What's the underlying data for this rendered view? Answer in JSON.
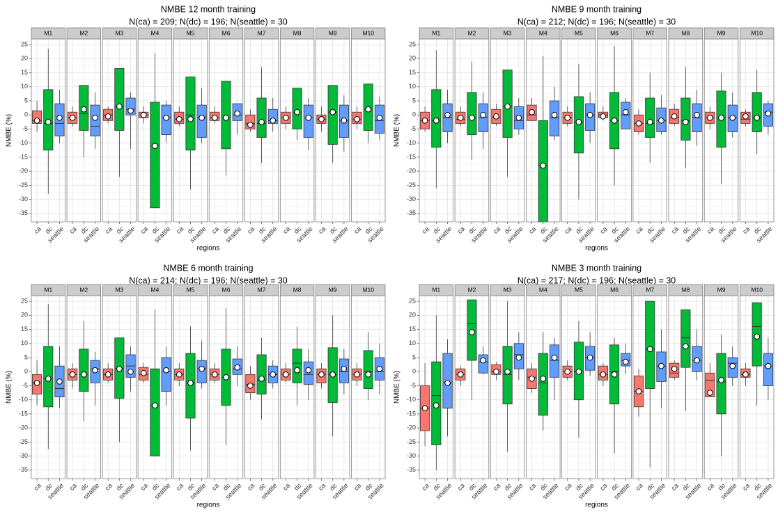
{
  "chart_data": [
    {
      "type": "boxplot",
      "title": "NMBE 12 month training",
      "subtitle": "N(ca) = 209; N(dc) = 196; N(seattle) = 30",
      "xlabel": "regions",
      "ylabel": "NMBE (%)",
      "ylim": [
        -38,
        27
      ],
      "yticks": [
        25,
        20,
        15,
        10,
        5,
        0,
        -5,
        -10,
        -15,
        -20,
        -25,
        -30,
        -35
      ],
      "panels": [
        "M1",
        "M2",
        "M3",
        "M4",
        "M5",
        "M6",
        "M7",
        "M8",
        "M9",
        "M10"
      ],
      "categories": [
        "ca",
        "dc",
        "seattle"
      ],
      "colors": {
        "ca": "#f8766d",
        "dc": "#00ba38",
        "seattle": "#619cff"
      },
      "grid": true,
      "data": [
        [
          [
            -6,
            -3,
            -2,
            1.5,
            5,
            -2
          ],
          [
            -28,
            -12.5,
            -3,
            9,
            23.5,
            -2.5
          ],
          [
            -10,
            -7.5,
            -3,
            4,
            9,
            -1
          ]
        ],
        [
          [
            -4,
            -3,
            -1,
            1,
            3,
            -1
          ],
          [
            -15,
            -5.5,
            0.5,
            10.5,
            10.5,
            2
          ],
          [
            -12,
            -7.5,
            -4,
            3.5,
            8,
            -1
          ]
        ],
        [
          [
            -3,
            -2,
            0,
            2,
            3,
            -0.5
          ],
          [
            -22,
            -5.5,
            3,
            16.5,
            16.5,
            3
          ],
          [
            -12,
            0,
            2,
            6,
            8,
            1.5
          ]
        ],
        [
          [
            -3,
            -1,
            0,
            1,
            3,
            0
          ],
          [
            -33,
            -33,
            -11,
            4.5,
            22,
            -11
          ],
          [
            -10,
            -7,
            -1,
            3.5,
            5,
            -1
          ]
        ],
        [
          [
            -4,
            -3,
            -1.5,
            1,
            3,
            -1.5
          ],
          [
            -26.5,
            -12.5,
            0,
            13.5,
            13.5,
            -1.5
          ],
          [
            -10,
            -8,
            -1,
            3.5,
            9.5,
            -1
          ]
        ],
        [
          [
            -3,
            -2,
            -1,
            1,
            3,
            -1
          ],
          [
            -21.5,
            -12,
            -1,
            12,
            12,
            -1
          ],
          [
            -7,
            -2,
            0,
            4,
            4,
            0.5
          ]
        ],
        [
          [
            -6,
            -5,
            -3,
            0,
            2,
            -3.5
          ],
          [
            -17,
            -8,
            -3,
            6,
            17,
            -2.5
          ],
          [
            -6,
            -3,
            -2,
            2,
            6,
            -2
          ]
        ],
        [
          [
            -5,
            -3,
            -1,
            1,
            3,
            -1
          ],
          [
            -9,
            -5,
            1,
            9.5,
            9.5,
            1
          ],
          [
            -12.5,
            -8,
            -1,
            3.5,
            6,
            -1
          ]
        ],
        [
          [
            -6,
            -3,
            -1.5,
            0,
            3,
            -1.5
          ],
          [
            -17,
            -10.5,
            1,
            10.5,
            10.5,
            1
          ],
          [
            -13,
            -8,
            -2,
            3.5,
            7,
            -2
          ]
        ],
        [
          [
            -5,
            -3,
            -1.5,
            1,
            3,
            -1.5
          ],
          [
            -10,
            -5.5,
            2,
            11,
            11,
            2
          ],
          [
            -9,
            -6.5,
            -2,
            3.5,
            6.5,
            -1
          ]
        ]
      ]
    },
    {
      "type": "boxplot",
      "title": "NMBE 9 month training",
      "subtitle": "N(ca) = 212; N(dc) = 196; N(seattle) = 30",
      "xlabel": "regions",
      "ylabel": "NMBE (%)",
      "ylim": [
        -38,
        27
      ],
      "yticks": [
        25,
        20,
        15,
        10,
        5,
        0,
        -5,
        -10,
        -15,
        -20,
        -25,
        -30,
        -35
      ],
      "panels": [
        "M1",
        "M2",
        "M3",
        "M4",
        "M5",
        "M6",
        "M7",
        "M8",
        "M9",
        "M10"
      ],
      "categories": [
        "ca",
        "dc",
        "seattle"
      ],
      "colors": {
        "ca": "#f8766d",
        "dc": "#00ba38",
        "seattle": "#619cff"
      },
      "grid": true,
      "data": [
        [
          [
            -6,
            -5,
            -2,
            1,
            3,
            -2
          ],
          [
            -26,
            -11.5,
            -2,
            9,
            23,
            -2
          ],
          [
            -10,
            -6,
            -1,
            4,
            9,
            0
          ]
        ],
        [
          [
            -4,
            -3,
            -1.5,
            1,
            3,
            -1
          ],
          [
            -16,
            -7,
            -1,
            8,
            19,
            -1
          ],
          [
            -12,
            -6,
            -1,
            4,
            8,
            0
          ]
        ],
        [
          [
            -4,
            -3,
            -1,
            2,
            4,
            -0.5
          ],
          [
            -22,
            -8,
            3,
            16,
            16,
            3
          ],
          [
            -7,
            -5,
            -2,
            3,
            6,
            -1
          ]
        ],
        [
          [
            -1,
            -2,
            0,
            3.5,
            6,
            1
          ],
          [
            -38,
            -38,
            -18,
            -2,
            21,
            -18
          ],
          [
            -9,
            -7.5,
            -1,
            5,
            10,
            0
          ]
        ],
        [
          [
            -4,
            -3,
            -1,
            1,
            3,
            -1
          ],
          [
            -30,
            -13.5,
            -2.5,
            6.5,
            18,
            -2.5
          ],
          [
            -10,
            -5.5,
            0,
            4,
            8,
            0
          ]
        ],
        [
          [
            -2,
            -1,
            0,
            1,
            3,
            -0.5
          ],
          [
            -25,
            -12,
            -2,
            8,
            24.5,
            -2
          ],
          [
            -4,
            -5,
            0,
            4.5,
            6,
            1
          ]
        ],
        [
          [
            -7,
            -6,
            -3,
            0,
            2,
            -3
          ],
          [
            -17,
            -8,
            -3,
            6,
            15,
            -2.5
          ],
          [
            -7,
            -6,
            -2,
            2.5,
            7,
            -2
          ]
        ],
        [
          [
            -4,
            -3,
            -1,
            2,
            4,
            -0.5
          ],
          [
            -19,
            -9,
            -2,
            6,
            17,
            -2.5
          ],
          [
            -11,
            -6,
            -1,
            4,
            9,
            0
          ]
        ],
        [
          [
            -5,
            -3,
            -1,
            1,
            3,
            -1
          ],
          [
            -24.5,
            -11.5,
            -1,
            8.5,
            15,
            -1
          ],
          [
            -8,
            -6,
            -1,
            3.5,
            8,
            -1
          ]
        ],
        [
          [
            -4,
            -3,
            -1.5,
            1,
            2,
            -0.5
          ],
          [
            -14,
            -6,
            -1,
            8,
            16,
            -1
          ],
          [
            -7,
            -4,
            1,
            4,
            5,
            0.5
          ]
        ]
      ]
    },
    {
      "type": "boxplot",
      "title": "NMBE 6 month training",
      "subtitle": "N(ca) = 214; N(dc) = 196; N(seattle) = 30",
      "xlabel": "regions",
      "ylabel": "NMBE (%)",
      "ylim": [
        -38,
        27
      ],
      "yticks": [
        25,
        20,
        15,
        10,
        5,
        0,
        -5,
        -10,
        -15,
        -20,
        -25,
        -30,
        -35
      ],
      "panels": [
        "M1",
        "M2",
        "M3",
        "M4",
        "M5",
        "M6",
        "M7",
        "M8",
        "M9",
        "M10"
      ],
      "categories": [
        "ca",
        "dc",
        "seattle"
      ],
      "colors": {
        "ca": "#f8766d",
        "dc": "#00ba38",
        "seattle": "#619cff"
      },
      "grid": true,
      "data": [
        [
          [
            -12,
            -8,
            -4,
            -1,
            4,
            -4
          ],
          [
            -27.5,
            -12.5,
            -2.5,
            9,
            24,
            -2.5
          ],
          [
            -13,
            -9,
            -6,
            2,
            9,
            -3.5
          ]
        ],
        [
          [
            -6,
            -3,
            -1,
            1,
            3,
            -1
          ],
          [
            -17.5,
            -7,
            -1,
            8,
            18,
            -1
          ],
          [
            -12,
            -4,
            1,
            4,
            7,
            0.5
          ]
        ],
        [
          [
            -4,
            -3,
            -1,
            1,
            3,
            -1
          ],
          [
            -25,
            -9.5,
            1,
            12,
            12,
            1
          ],
          [
            -7,
            -2,
            2,
            6,
            9,
            0
          ]
        ],
        [
          [
            -4,
            -3,
            -1,
            1.5,
            3,
            -0.5
          ],
          [
            -30,
            -30,
            -12,
            1,
            22,
            -12
          ],
          [
            -12,
            -7,
            0,
            5,
            9,
            0.5
          ]
        ],
        [
          [
            -5,
            -3,
            -1,
            1,
            3,
            -1
          ],
          [
            -28,
            -16.5,
            -4,
            6.5,
            16,
            -4
          ],
          [
            -6,
            -4,
            1,
            4,
            11,
            1
          ]
        ],
        [
          [
            -4,
            -3,
            -1,
            1,
            3,
            -1
          ],
          [
            -26,
            -12,
            -2,
            8,
            22.5,
            -2
          ],
          [
            -5,
            -1,
            1,
            4.5,
            9,
            1.5
          ]
        ],
        [
          [
            -10,
            -7.5,
            -4.5,
            -1,
            2,
            -5
          ],
          [
            -17,
            -8,
            -3,
            6,
            12,
            -2.5
          ],
          [
            -6,
            -4,
            -1,
            2,
            4,
            -1
          ]
        ],
        [
          [
            -4,
            -3,
            -1,
            1,
            3,
            -1
          ],
          [
            -12,
            -4,
            3,
            8,
            16,
            0.5
          ],
          [
            -10,
            -4.5,
            -1,
            3.5,
            8,
            0.5
          ]
        ],
        [
          [
            -6,
            -4,
            -1,
            1,
            3,
            -1
          ],
          [
            -23,
            -11,
            -1,
            8.5,
            20,
            -1
          ],
          [
            -8,
            -4,
            0,
            4.5,
            8,
            1
          ]
        ],
        [
          [
            -5,
            -3,
            -1,
            1,
            3,
            -1
          ],
          [
            -10,
            -6,
            0,
            7.5,
            14,
            -1
          ],
          [
            -8,
            -3,
            0,
            5,
            10,
            1
          ]
        ]
      ]
    },
    {
      "type": "boxplot",
      "title": "NMBE 3 month training",
      "subtitle": "N(ca) = 217; N(dc) = 196; N(seattle) = 30",
      "xlabel": "regions",
      "ylabel": "NMBE (%)",
      "ylim": [
        -38,
        27
      ],
      "yticks": [
        25,
        20,
        15,
        10,
        5,
        0,
        -5,
        -10,
        -15,
        -20,
        -25,
        -30,
        -35
      ],
      "panels": [
        "M1",
        "M2",
        "M3",
        "M4",
        "M5",
        "M6",
        "M7",
        "M8",
        "M9",
        "M10"
      ],
      "categories": [
        "ca",
        "dc",
        "seattle"
      ],
      "colors": {
        "ca": "#f8766d",
        "dc": "#00ba38",
        "seattle": "#619cff"
      },
      "grid": true,
      "data": [
        [
          [
            -26.5,
            -21,
            -13,
            -5,
            3,
            -13
          ],
          [
            -35,
            -26,
            -8.5,
            3.5,
            20,
            -12
          ],
          [
            -23,
            -13,
            -4,
            6.5,
            11.5,
            -4
          ]
        ],
        [
          [
            -5,
            -3,
            -1,
            1,
            2,
            -1
          ],
          [
            -10,
            4,
            17,
            25.5,
            25.5,
            14
          ],
          [
            -1,
            -0.5,
            3.5,
            6,
            9,
            4
          ]
        ],
        [
          [
            -3,
            -1,
            0,
            2.5,
            3.5,
            0
          ],
          [
            -28.5,
            -11.5,
            -1,
            9,
            25,
            0
          ],
          [
            -3,
            1,
            6,
            10,
            14,
            5
          ]
        ],
        [
          [
            -7.5,
            -6,
            -2,
            1,
            3,
            -2.5
          ],
          [
            -21,
            -15.5,
            -4,
            6.5,
            14,
            -2.5
          ],
          [
            -10,
            -2,
            4,
            9.5,
            12,
            5
          ]
        ],
        [
          [
            -3,
            -2,
            0,
            2,
            4,
            0
          ],
          [
            -23.5,
            -10,
            0,
            10.5,
            18,
            0
          ],
          [
            -1.5,
            0.5,
            5,
            9,
            14,
            5
          ]
        ],
        [
          [
            -5,
            -3,
            -1,
            2,
            3,
            -1
          ],
          [
            -29,
            -11.5,
            0,
            9.5,
            12,
            -1
          ],
          [
            -1,
            2,
            4,
            6.5,
            10,
            3.5
          ]
        ],
        [
          [
            -16,
            -12.5,
            -7,
            -1.5,
            1,
            -7
          ],
          [
            -34,
            -6,
            8,
            25,
            25,
            8
          ],
          [
            -13,
            -3.5,
            2,
            7,
            15,
            2
          ]
        ],
        [
          [
            -3,
            -2,
            -0.5,
            3,
            4,
            1
          ],
          [
            -14,
            1.5,
            12,
            22,
            22,
            9
          ],
          [
            -3,
            0,
            4,
            9,
            15,
            4
          ]
        ],
        [
          [
            -9,
            -9,
            -3,
            -0.5,
            3,
            -7.5
          ],
          [
            -30,
            -15,
            -3.5,
            6.5,
            13,
            -3
          ],
          [
            -5,
            -2,
            3,
            5,
            9,
            2
          ]
        ],
        [
          [
            -5,
            -2,
            -1,
            1,
            3,
            -1
          ],
          [
            -12,
            2,
            16,
            24.5,
            24.5,
            12.5
          ],
          [
            -10,
            -5,
            2,
            6.5,
            12,
            2
          ]
        ]
      ]
    }
  ]
}
